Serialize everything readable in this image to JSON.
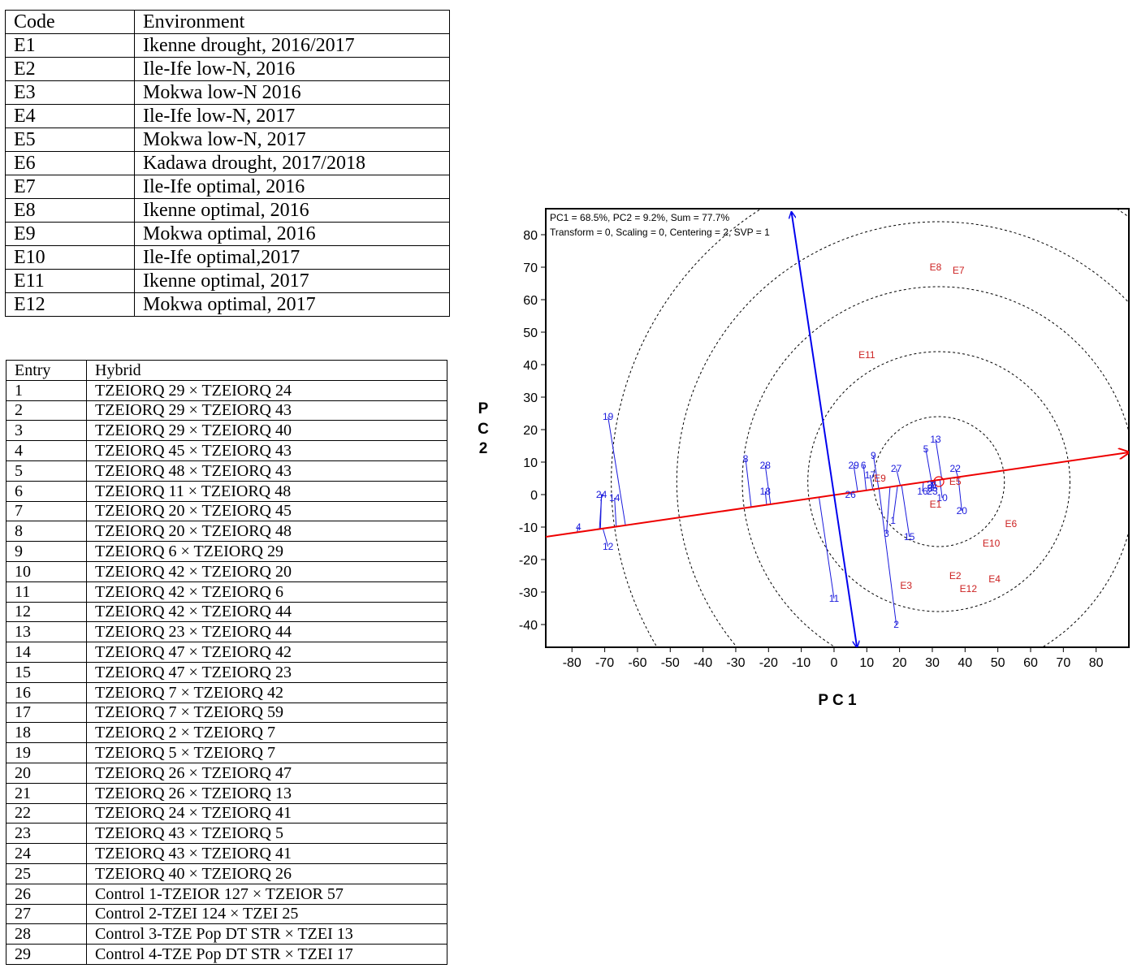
{
  "env_table": {
    "headers": [
      "Code",
      "Environment"
    ],
    "rows": [
      [
        "E1",
        "Ikenne drought, 2016/2017"
      ],
      [
        "E2",
        "Ile-Ife low-N, 2016"
      ],
      [
        "E3",
        "Mokwa low-N 2016"
      ],
      [
        "E4",
        "Ile-Ife low-N, 2017"
      ],
      [
        "E5",
        "Mokwa low-N, 2017"
      ],
      [
        "E6",
        "Kadawa drought, 2017/2018"
      ],
      [
        "E7",
        "Ile-Ife optimal, 2016"
      ],
      [
        "E8",
        "Ikenne optimal, 2016"
      ],
      [
        "E9",
        "Mokwa optimal, 2016"
      ],
      [
        "E10",
        "Ile-Ife optimal,2017"
      ],
      [
        "E11",
        "Ikenne optimal, 2017"
      ],
      [
        "E12",
        "Mokwa optimal, 2017"
      ]
    ]
  },
  "hybrid_table": {
    "headers": [
      "Entry",
      "Hybrid"
    ],
    "rows": [
      [
        "1",
        "TZEIORQ 29 × TZEIORQ 24"
      ],
      [
        "2",
        "TZEIORQ 29 × TZEIORQ 43"
      ],
      [
        "3",
        "TZEIORQ 29 × TZEIORQ 40"
      ],
      [
        "4",
        "TZEIORQ 45 × TZEIORQ 43"
      ],
      [
        "5",
        "TZEIORQ 48 × TZEIORQ 43"
      ],
      [
        "6",
        "TZEIORQ 11 × TZEIORQ 48"
      ],
      [
        "7",
        "TZEIORQ 20 × TZEIORQ 45"
      ],
      [
        "8",
        "TZEIORQ 20 × TZEIORQ 48"
      ],
      [
        "9",
        "TZEIORQ 6 × TZEIORQ 29"
      ],
      [
        "10",
        "TZEIORQ 42 × TZEIORQ 20"
      ],
      [
        "11",
        "TZEIORQ 42 × TZEIORQ 6"
      ],
      [
        "12",
        "TZEIORQ 42 × TZEIORQ 44"
      ],
      [
        "13",
        "TZEIORQ 23 × TZEIORQ 44"
      ],
      [
        "14",
        "TZEIORQ 47 × TZEIORQ 42"
      ],
      [
        "15",
        "TZEIORQ 47 × TZEIORQ 23"
      ],
      [
        "16",
        "TZEIORQ 7 × TZEIORQ 42"
      ],
      [
        "17",
        "TZEIORQ 7 × TZEIORQ 59"
      ],
      [
        "18",
        "TZEIORQ 2 × TZEIORQ 7"
      ],
      [
        "19",
        "TZEIORQ 5 × TZEIORQ 7"
      ],
      [
        "20",
        "TZEIORQ 26 × TZEIORQ 47"
      ],
      [
        "21",
        "TZEIORQ 26 × TZEIORQ 13"
      ],
      [
        "22",
        "TZEIORQ 24 × TZEIORQ 41"
      ],
      [
        "23",
        "TZEIORQ 43 × TZEIORQ 5"
      ],
      [
        "24",
        "TZEIORQ 43 × TZEIORQ 41"
      ],
      [
        "25",
        "TZEIORQ 40 × TZEIORQ 26"
      ],
      [
        "26",
        "Control 1-TZEIOR 127 × TZEIOR 57"
      ],
      [
        "27",
        "Control 2-TZEI 124 × TZEI 25"
      ],
      [
        "28",
        "Control 3-TZE Pop DT STR × TZEI 13"
      ],
      [
        "29",
        "Control 4-TZE Pop DT STR × TZEI 17"
      ]
    ]
  },
  "chart_data": {
    "type": "scatter",
    "subtype": "GGE biplot (mean vs stability)",
    "info_line_1": "PC1 = 68.5%, PC2 = 9.2%, Sum = 77.7%",
    "info_line_2": "Transform = 0, Scaling = 0, Centering = 2, SVP = 1",
    "xlabel": "P C 1",
    "ylabel": "P C 2",
    "xlim": [
      -88,
      90
    ],
    "ylim": [
      -47,
      88
    ],
    "xticks": [
      -80,
      -70,
      -60,
      -50,
      -40,
      -30,
      -20,
      -10,
      0,
      10,
      20,
      30,
      40,
      50,
      60,
      70,
      80
    ],
    "yticks": [
      -40,
      -30,
      -20,
      -10,
      0,
      10,
      20,
      30,
      40,
      50,
      60,
      70,
      80
    ],
    "circle_radii": [
      20,
      40,
      60,
      80,
      100
    ],
    "grid": false,
    "colors": {
      "genotype": "#1a1adc",
      "environment": "#cc2222",
      "vector": "#0000ee",
      "axis": "#ee0000",
      "circle": "#000000"
    },
    "average_environment_axis": {
      "from": [
        -88,
        -13
      ],
      "to": [
        90,
        13
      ]
    },
    "perpendicular_axis": {
      "from": [
        -13,
        87
      ],
      "to": [
        7,
        -47
      ]
    },
    "average_environment_point": [
      32,
      4
    ],
    "genotypes": [
      {
        "label": "1",
        "x": 18,
        "y": -8,
        "proj": [
          19.4,
          2.8
        ]
      },
      {
        "label": "2",
        "x": 19,
        "y": -40,
        "proj": [
          13.7,
          2
        ]
      },
      {
        "label": "3",
        "x": 16,
        "y": -12,
        "proj": [
          17.1,
          2.5
        ]
      },
      {
        "label": "4",
        "x": -78,
        "y": -10,
        "proj": [
          -78.4,
          -11.4
        ]
      },
      {
        "label": "5",
        "x": 28,
        "y": 14,
        "proj": [
          29.7,
          4.3
        ]
      },
      {
        "label": "6",
        "x": 9,
        "y": 9,
        "proj": [
          9.8,
          1.4
        ]
      },
      {
        "label": "7",
        "x": -71,
        "y": -1,
        "proj": [
          -71.6,
          -10.4
        ]
      },
      {
        "label": "8",
        "x": -27,
        "y": 11,
        "proj": [
          -25.3,
          -3.7
        ]
      },
      {
        "label": "9",
        "x": 12,
        "y": 12,
        "proj": [
          13.6,
          2
        ]
      },
      {
        "label": "10",
        "x": 33,
        "y": -1,
        "proj": [
          32.3,
          4.7
        ]
      },
      {
        "label": "11",
        "x": 0,
        "y": -32,
        "proj": [
          -4.6,
          -0.7
        ]
      },
      {
        "label": "12",
        "x": -69,
        "y": -16,
        "proj": [
          -70.6,
          -10.3
        ]
      },
      {
        "label": "13",
        "x": 31,
        "y": 17,
        "proj": [
          32.9,
          4.8
        ]
      },
      {
        "label": "14",
        "x": -67,
        "y": -1,
        "proj": [
          -66.5,
          -9.7
        ]
      },
      {
        "label": "15",
        "x": 23,
        "y": -13,
        "proj": [
          20.6,
          3
        ]
      },
      {
        "label": "16",
        "x": 27,
        "y": 1,
        "proj": [
          27.3,
          4
        ]
      },
      {
        "label": "17",
        "x": 11,
        "y": 6,
        "proj": [
          11.8,
          1.7
        ]
      },
      {
        "label": "18",
        "x": -21,
        "y": 1,
        "proj": [
          -20.6,
          -3
        ]
      },
      {
        "label": "19",
        "x": -69,
        "y": 24,
        "proj": [
          -63.7,
          -9.3
        ]
      },
      {
        "label": "20",
        "x": 39,
        "y": -5,
        "proj": [
          37.9,
          5.5
        ]
      },
      {
        "label": "21",
        "x": 30,
        "y": 3,
        "proj": [
          30.3,
          4.4
        ]
      },
      {
        "label": "22",
        "x": 37,
        "y": 8,
        "proj": [
          37.8,
          5.5
        ]
      },
      {
        "label": "23",
        "x": 30,
        "y": 1,
        "proj": [
          29.8,
          4.3
        ]
      },
      {
        "label": "24",
        "x": -71,
        "y": 0,
        "proj": [
          -71.3,
          -10.4
        ]
      },
      {
        "label": "25",
        "x": 30,
        "y": 2,
        "proj": [
          30.2,
          4.4
        ]
      },
      {
        "label": "26",
        "x": 5,
        "y": 0,
        "proj": [
          5,
          0.7
        ]
      },
      {
        "label": "27",
        "x": 19,
        "y": 8,
        "proj": [
          20.2,
          2.9
        ]
      },
      {
        "label": "28",
        "x": -21,
        "y": 9,
        "proj": [
          -19.4,
          -2.8
        ]
      },
      {
        "label": "29",
        "x": 6,
        "y": 9,
        "proj": [
          7.2,
          1
        ]
      }
    ],
    "environments": [
      {
        "label": "E1",
        "x": 31,
        "y": -3
      },
      {
        "label": "E2",
        "x": 37,
        "y": -25
      },
      {
        "label": "E3",
        "x": 22,
        "y": -28
      },
      {
        "label": "E4",
        "x": 49,
        "y": -26
      },
      {
        "label": "E5",
        "x": 37,
        "y": 4
      },
      {
        "label": "E6",
        "x": 54,
        "y": -9
      },
      {
        "label": "E7",
        "x": 38,
        "y": 69
      },
      {
        "label": "E8",
        "x": 31,
        "y": 70
      },
      {
        "label": "E9",
        "x": 14,
        "y": 5
      },
      {
        "label": "E10",
        "x": 48,
        "y": -15
      },
      {
        "label": "E11",
        "x": 10,
        "y": 43
      },
      {
        "label": "E12",
        "x": 41,
        "y": -29
      }
    ]
  }
}
